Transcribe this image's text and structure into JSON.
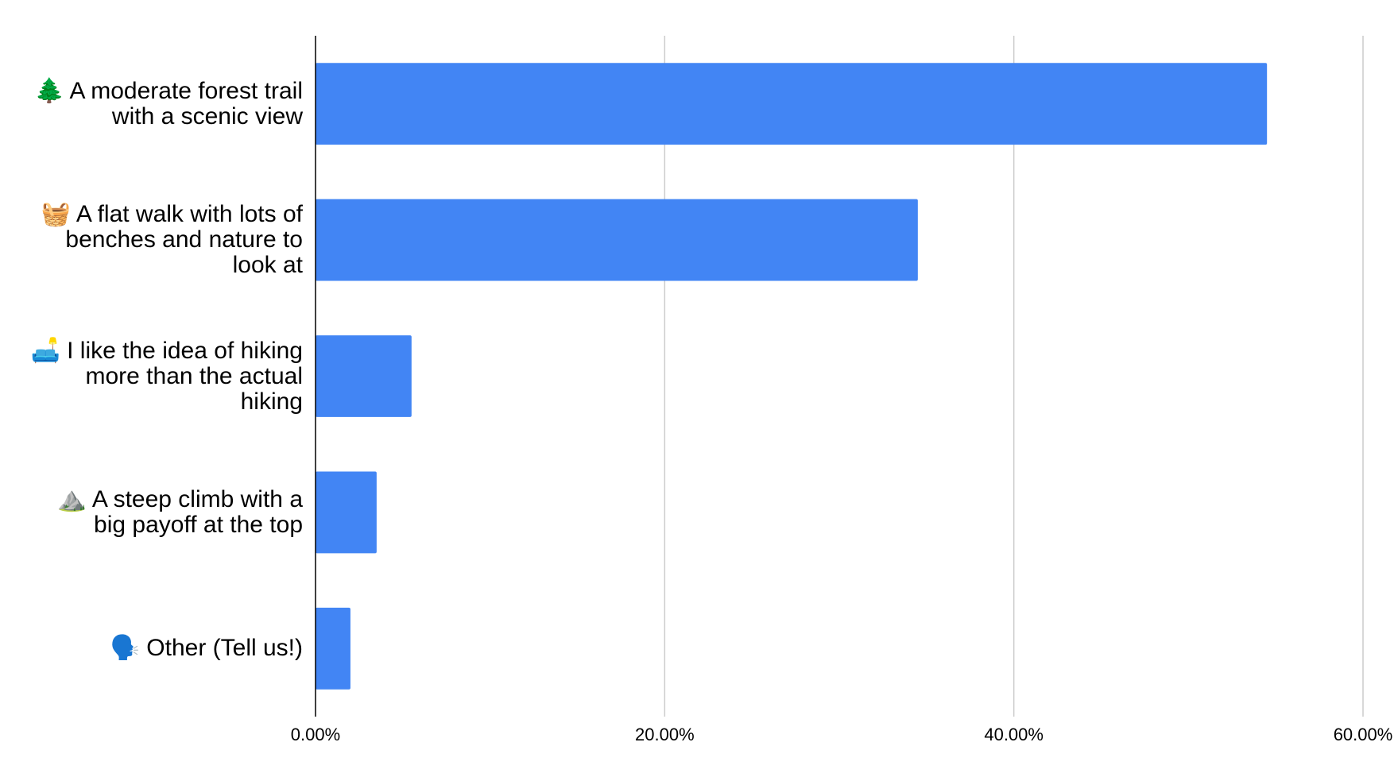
{
  "chart_data": {
    "type": "bar",
    "orientation": "horizontal",
    "categories": [
      "🌲 A moderate forest trail with a scenic view",
      "🧺 A flat walk with lots of benches and nature to look at",
      "🛋️ I like the idea of hiking more than the actual hiking",
      "⛰️ A steep climb with a big payoff at the top",
      "🗣️ Other (Tell us!)"
    ],
    "values": [
      54.5,
      34.5,
      5.5,
      3.5,
      2.0
    ],
    "color": "#4285f4",
    "xlim": [
      0,
      60
    ],
    "xticks": [
      {
        "value": 0,
        "label": "0.00%"
      },
      {
        "value": 20,
        "label": "20.00%"
      },
      {
        "value": 40,
        "label": "40.00%"
      },
      {
        "value": 60,
        "label": "60.00%"
      }
    ],
    "grid": true
  }
}
